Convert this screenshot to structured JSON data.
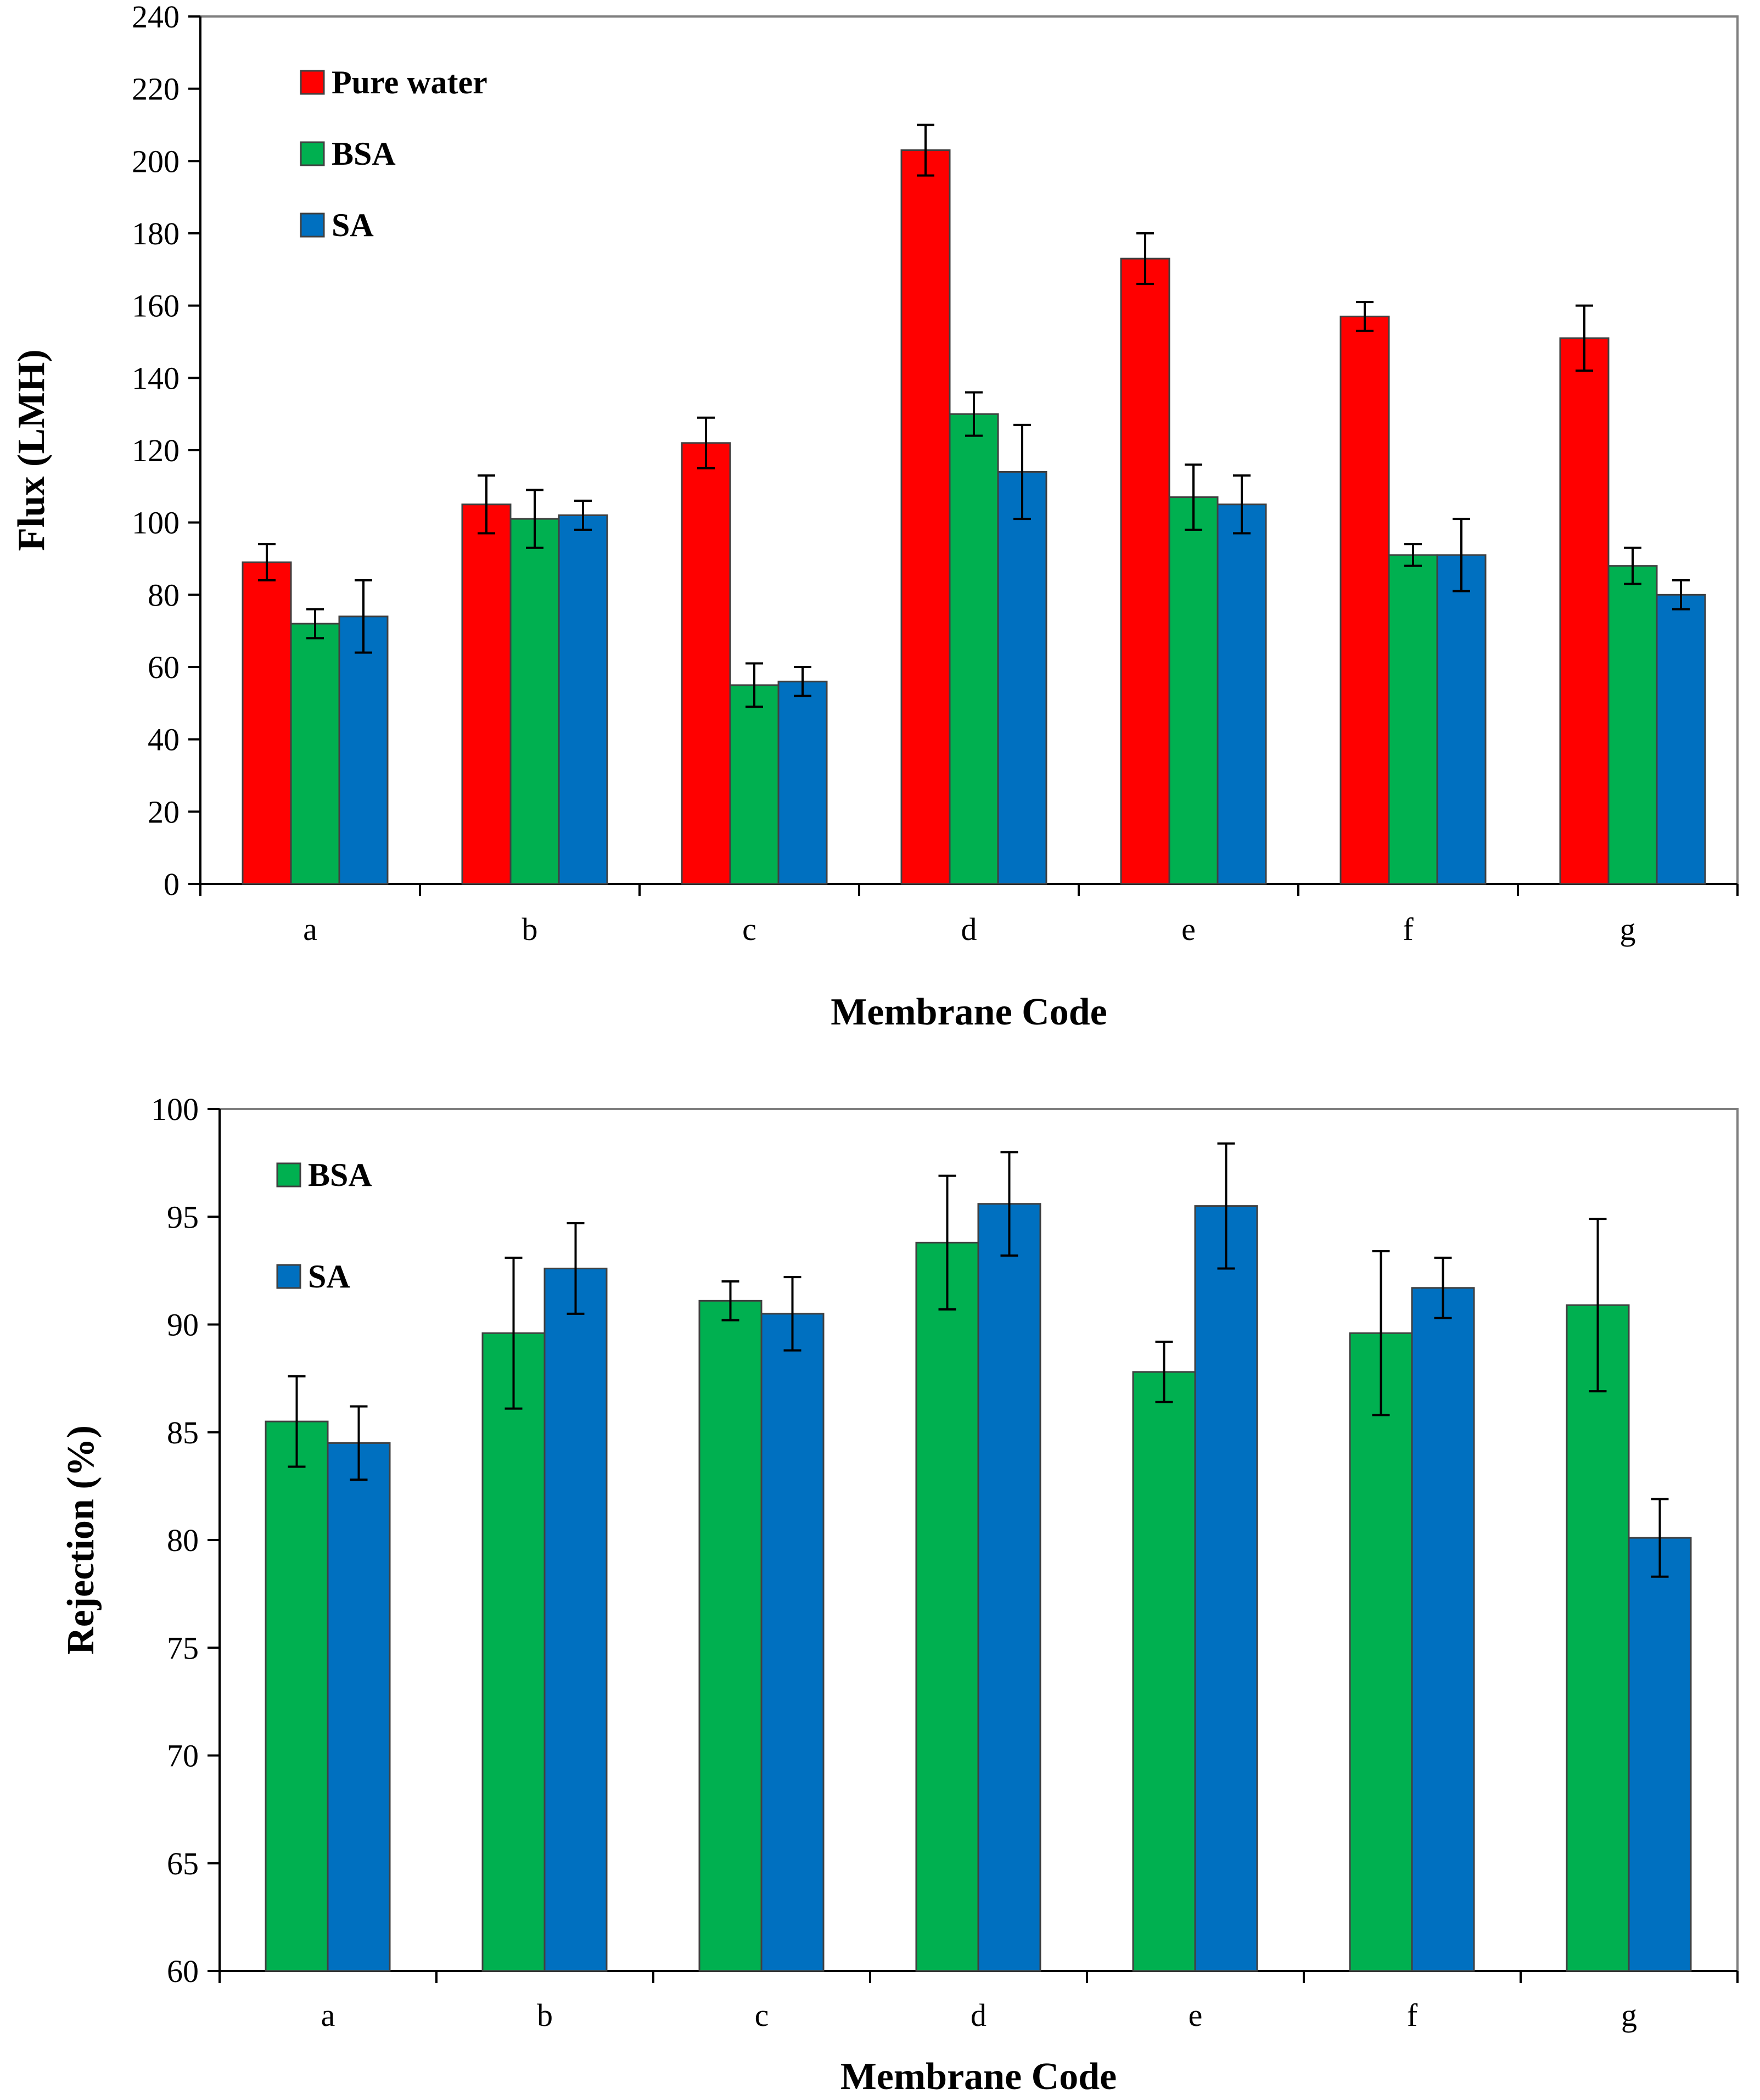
{
  "chart_data": [
    {
      "type": "bar",
      "title": "",
      "xlabel": "Membrane Code",
      "ylabel": "Flux (LMH)",
      "ylim": [
        0,
        240
      ],
      "ytick_step": 20,
      "grid": false,
      "legend_position": "top-left",
      "categories": [
        "a",
        "b",
        "c",
        "d",
        "e",
        "f",
        "g"
      ],
      "series": [
        {
          "name": "Pure water",
          "color": "#ff0000",
          "values": [
            89,
            105,
            122,
            203,
            173,
            157,
            151
          ],
          "errors": [
            5,
            8,
            7,
            7,
            7,
            4,
            9
          ]
        },
        {
          "name": "BSA",
          "color": "#00b050",
          "values": [
            72,
            101,
            55,
            130,
            107,
            91,
            88
          ],
          "errors": [
            4,
            8,
            6,
            6,
            9,
            3,
            5
          ]
        },
        {
          "name": "SA",
          "color": "#0070c0",
          "values": [
            74,
            102,
            56,
            114,
            105,
            91,
            80
          ],
          "errors": [
            10,
            4,
            4,
            13,
            8,
            10,
            4
          ]
        }
      ]
    },
    {
      "type": "bar",
      "title": "",
      "xlabel": "Membrane Code",
      "ylabel": "Rejection (%)",
      "ylim": [
        60,
        100
      ],
      "ytick_step": 5,
      "grid": false,
      "legend_position": "top-left",
      "categories": [
        "a",
        "b",
        "c",
        "d",
        "e",
        "f",
        "g"
      ],
      "series": [
        {
          "name": "BSA",
          "color": "#00b050",
          "values": [
            85.5,
            89.6,
            91.1,
            93.8,
            87.8,
            89.6,
            90.9
          ],
          "errors": [
            2.1,
            3.5,
            0.9,
            3.1,
            1.4,
            3.8,
            4.0
          ]
        },
        {
          "name": "SA",
          "color": "#0070c0",
          "values": [
            84.5,
            92.6,
            90.5,
            95.6,
            95.5,
            91.7,
            80.1
          ],
          "errors": [
            1.7,
            2.1,
            1.7,
            2.4,
            2.9,
            1.4,
            1.8
          ]
        }
      ]
    }
  ]
}
